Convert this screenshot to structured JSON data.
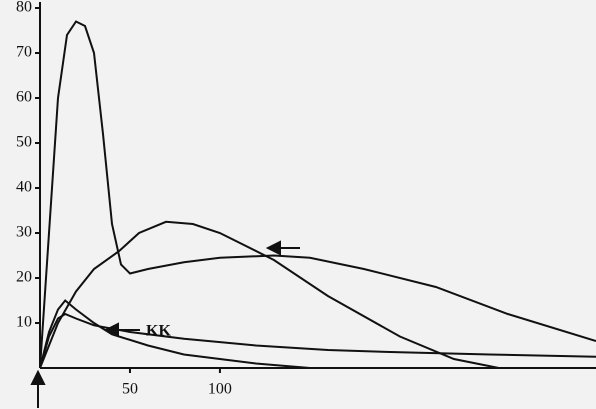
{
  "chart_data": {
    "type": "line",
    "xlim": [
      0,
      309
    ],
    "ylim": [
      0,
      80
    ],
    "xticks": [
      50,
      100
    ],
    "yticks": [
      10,
      20,
      30,
      40,
      50,
      60,
      70,
      80
    ],
    "annotations": [
      "KK"
    ],
    "series": [
      {
        "color": "#111111",
        "x": [
          0,
          5,
          10,
          15,
          20,
          25,
          30,
          35,
          40,
          45,
          50,
          60,
          80,
          100,
          130,
          150,
          180,
          220,
          260,
          309
        ],
        "values": [
          0,
          30,
          60,
          74,
          77,
          76,
          70,
          52,
          32,
          23,
          21,
          22,
          23.5,
          24.5,
          25,
          24.5,
          22,
          18,
          12,
          6
        ]
      },
      {
        "color": "#111111",
        "x": [
          0,
          5,
          10,
          14,
          20,
          30,
          40,
          60,
          80,
          100,
          120,
          150
        ],
        "values": [
          0,
          8,
          13,
          15,
          13,
          10,
          7.5,
          5,
          3,
          2,
          1,
          0
        ]
      },
      {
        "color": "#111111",
        "x": [
          0,
          10,
          20,
          30,
          44,
          55,
          70,
          85,
          100,
          130,
          160,
          200,
          230,
          255
        ],
        "values": [
          0,
          10,
          17,
          22,
          26,
          30,
          32.5,
          32,
          30,
          24,
          16,
          7,
          2,
          0
        ]
      },
      {
        "color": "#111111",
        "x": [
          0,
          5,
          10,
          14,
          20,
          30,
          50,
          80,
          120,
          160,
          200,
          250,
          309
        ],
        "values": [
          0,
          7,
          11,
          12,
          11,
          9.5,
          8,
          6.5,
          5,
          4,
          3.5,
          3,
          2.5
        ]
      }
    ]
  }
}
